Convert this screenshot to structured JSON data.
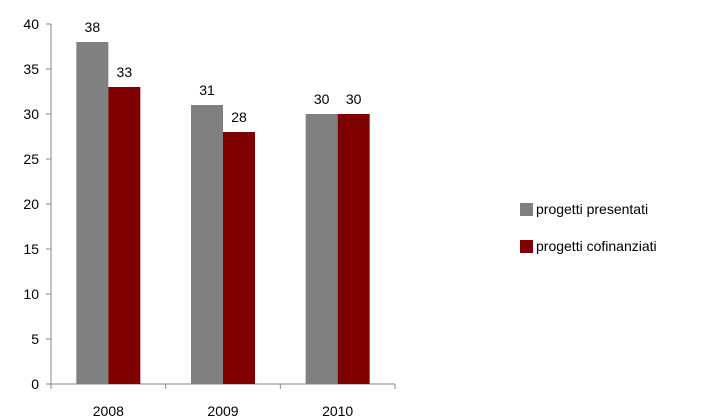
{
  "chart_data": {
    "type": "bar",
    "categories": [
      "2008",
      "2009",
      "2010"
    ],
    "series": [
      {
        "name": "progetti presentati",
        "values": [
          38,
          31,
          30
        ],
        "color": "#808080"
      },
      {
        "name": "progetti cofinanziati",
        "values": [
          33,
          28,
          30
        ],
        "color": "#7f0000"
      }
    ],
    "ylim": [
      0,
      40
    ],
    "yticks": [
      0,
      5,
      10,
      15,
      20,
      25,
      30,
      35,
      40
    ],
    "grid": false,
    "legend_position": "right",
    "title": "",
    "xlabel": "",
    "ylabel": ""
  }
}
